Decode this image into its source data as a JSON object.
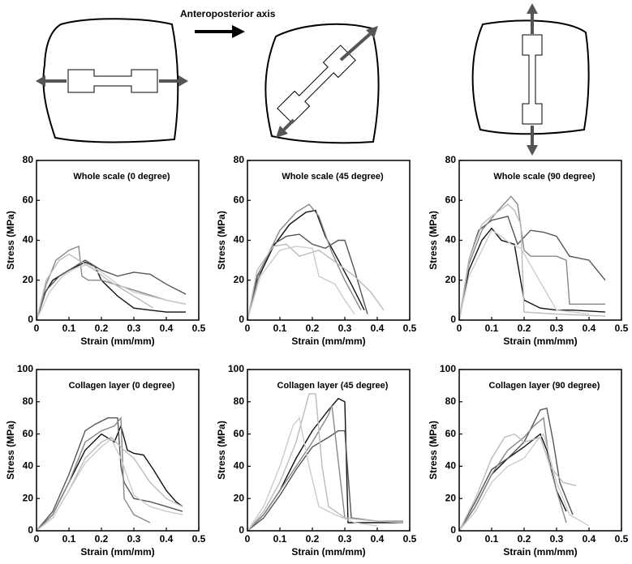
{
  "diagram": {
    "axis_label": "Anteroposterior axis"
  },
  "chart_data": [
    {
      "type": "line",
      "title": "Whole scale (0 degree)",
      "xlabel": "Strain (mm/mm)",
      "ylabel": "Stress (MPa)",
      "xlim": [
        0,
        0.5
      ],
      "ylim": [
        0,
        80
      ],
      "xticks": [
        0,
        0.1,
        0.2,
        0.3,
        0.4,
        0.5
      ],
      "yticks": [
        0,
        20,
        40,
        60,
        80
      ],
      "series": [
        {
          "color": "#111111",
          "x": [
            0,
            0.02,
            0.05,
            0.1,
            0.15,
            0.18,
            0.2,
            0.25,
            0.3,
            0.35,
            0.4,
            0.46
          ],
          "values": [
            0,
            12,
            20,
            25,
            29,
            27,
            20,
            12,
            6,
            5,
            4,
            4
          ]
        },
        {
          "color": "#555555",
          "x": [
            0,
            0.03,
            0.07,
            0.12,
            0.15,
            0.2,
            0.25,
            0.3,
            0.35,
            0.4,
            0.46
          ],
          "values": [
            0,
            15,
            22,
            27,
            30,
            25,
            22,
            24,
            23,
            18,
            13
          ]
        },
        {
          "color": "#888888",
          "x": [
            0,
            0.03,
            0.06,
            0.1,
            0.13,
            0.14,
            0.16,
            0.2,
            0.3,
            0.4,
            0.46
          ],
          "values": [
            0,
            18,
            30,
            35,
            37,
            22,
            20,
            20,
            15,
            10,
            8
          ]
        },
        {
          "color": "#bbbbbb",
          "x": [
            0,
            0.03,
            0.07,
            0.1,
            0.15,
            0.18,
            0.22,
            0.3,
            0.36
          ],
          "values": [
            0,
            20,
            30,
            33,
            28,
            25,
            20,
            12,
            6
          ]
        },
        {
          "color": "#cccccc",
          "x": [
            0,
            0.04,
            0.08,
            0.12,
            0.16,
            0.2,
            0.25,
            0.3,
            0.4,
            0.46
          ],
          "values": [
            0,
            14,
            22,
            26,
            28,
            24,
            18,
            14,
            10,
            8
          ]
        }
      ]
    },
    {
      "type": "line",
      "title": "Whole scale (45 degree)",
      "xlabel": "Strain (mm/mm)",
      "ylabel": "Stress (MPa)",
      "xlim": [
        0,
        0.5
      ],
      "ylim": [
        0,
        80
      ],
      "xticks": [
        0,
        0.1,
        0.2,
        0.3,
        0.4,
        0.5
      ],
      "yticks": [
        0,
        20,
        40,
        60,
        80
      ],
      "series": [
        {
          "color": "#111111",
          "x": [
            0,
            0.03,
            0.08,
            0.13,
            0.18,
            0.21,
            0.24,
            0.28,
            0.32,
            0.36
          ],
          "values": [
            0,
            20,
            37,
            48,
            54,
            55,
            42,
            30,
            18,
            5
          ]
        },
        {
          "color": "#555555",
          "x": [
            0,
            0.03,
            0.08,
            0.12,
            0.16,
            0.2,
            0.24,
            0.28,
            0.3,
            0.33,
            0.37
          ],
          "values": [
            0,
            22,
            38,
            42,
            43,
            38,
            36,
            40,
            40,
            25,
            3
          ]
        },
        {
          "color": "#888888",
          "x": [
            0,
            0.04,
            0.1,
            0.15,
            0.19,
            0.22,
            0.26,
            0.3,
            0.35
          ],
          "values": [
            0,
            25,
            45,
            54,
            58,
            52,
            34,
            20,
            5
          ]
        },
        {
          "color": "#bbbbbb",
          "x": [
            0,
            0.03,
            0.08,
            0.12,
            0.16,
            0.22,
            0.28,
            0.33,
            0.38,
            0.42
          ],
          "values": [
            0,
            25,
            37,
            38,
            32,
            35,
            28,
            22,
            14,
            5
          ]
        },
        {
          "color": "#cccccc",
          "x": [
            0,
            0.04,
            0.1,
            0.15,
            0.2,
            0.22,
            0.27,
            0.3,
            0.33
          ],
          "values": [
            0,
            22,
            35,
            37,
            36,
            22,
            18,
            10,
            3
          ]
        }
      ]
    },
    {
      "type": "line",
      "title": "Whole scale (90 degree)",
      "xlabel": "Strain (mm/mm)",
      "ylabel": "Stress (MPa)",
      "xlim": [
        0,
        0.5
      ],
      "ylim": [
        0,
        80
      ],
      "xticks": [
        0,
        0.1,
        0.2,
        0.3,
        0.4,
        0.5
      ],
      "yticks": [
        0,
        20,
        40,
        60,
        80
      ],
      "series": [
        {
          "color": "#111111",
          "x": [
            0,
            0.03,
            0.07,
            0.1,
            0.13,
            0.17,
            0.2,
            0.25,
            0.3,
            0.35,
            0.45
          ],
          "values": [
            0,
            25,
            40,
            46,
            40,
            38,
            10,
            6,
            5,
            5,
            4
          ]
        },
        {
          "color": "#555555",
          "x": [
            0,
            0.03,
            0.06,
            0.1,
            0.15,
            0.18,
            0.22,
            0.26,
            0.3,
            0.34,
            0.4,
            0.45
          ],
          "values": [
            0,
            30,
            45,
            50,
            52,
            38,
            45,
            44,
            42,
            32,
            30,
            20
          ]
        },
        {
          "color": "#888888",
          "x": [
            0,
            0.03,
            0.07,
            0.12,
            0.16,
            0.18,
            0.2,
            0.22,
            0.3,
            0.33,
            0.34,
            0.45
          ],
          "values": [
            0,
            28,
            45,
            55,
            62,
            58,
            35,
            32,
            32,
            30,
            8,
            8
          ]
        },
        {
          "color": "#bbbbbb",
          "x": [
            0,
            0.03,
            0.07,
            0.1,
            0.15,
            0.17,
            0.19,
            0.2,
            0.3,
            0.45
          ],
          "values": [
            0,
            30,
            48,
            52,
            58,
            55,
            48,
            4,
            3,
            2
          ]
        },
        {
          "color": "#cccccc",
          "x": [
            0,
            0.03,
            0.07,
            0.1,
            0.13,
            0.16,
            0.19,
            0.3,
            0.4
          ],
          "values": [
            0,
            22,
            35,
            45,
            42,
            38,
            36,
            5,
            3
          ]
        }
      ]
    },
    {
      "type": "line",
      "title": "Collagen layer  (0 degree)",
      "xlabel": "Strain (mm/mm)",
      "ylabel": "Stress (MPa)",
      "xlim": [
        0,
        0.5
      ],
      "ylim": [
        0,
        100
      ],
      "xticks": [
        0,
        0.1,
        0.2,
        0.3,
        0.4,
        0.5
      ],
      "yticks": [
        0,
        20,
        40,
        60,
        80,
        100
      ],
      "series": [
        {
          "color": "#111111",
          "x": [
            0,
            0.05,
            0.1,
            0.15,
            0.2,
            0.24,
            0.26,
            0.28,
            0.3,
            0.33,
            0.36,
            0.4,
            0.43,
            0.45
          ],
          "values": [
            0,
            10,
            30,
            50,
            60,
            55,
            65,
            50,
            48,
            47,
            38,
            25,
            18,
            15
          ]
        },
        {
          "color": "#555555",
          "x": [
            0,
            0.05,
            0.1,
            0.15,
            0.18,
            0.22,
            0.25,
            0.26,
            0.27,
            0.3,
            0.35,
            0.4,
            0.45
          ],
          "values": [
            0,
            12,
            35,
            62,
            66,
            70,
            70,
            40,
            30,
            20,
            18,
            15,
            12
          ]
        },
        {
          "color": "#888888",
          "x": [
            0,
            0.05,
            0.1,
            0.15,
            0.2,
            0.24,
            0.26,
            0.27,
            0.3,
            0.35
          ],
          "values": [
            0,
            10,
            30,
            55,
            62,
            65,
            70,
            20,
            10,
            5
          ]
        },
        {
          "color": "#bbbbbb",
          "x": [
            0,
            0.05,
            0.1,
            0.15,
            0.2,
            0.23,
            0.27,
            0.3,
            0.35,
            0.4,
            0.45
          ],
          "values": [
            0,
            8,
            25,
            45,
            55,
            58,
            50,
            45,
            30,
            20,
            15
          ]
        },
        {
          "color": "#cccccc",
          "x": [
            0,
            0.05,
            0.1,
            0.15,
            0.2,
            0.23,
            0.26,
            0.3,
            0.35,
            0.4,
            0.45
          ],
          "values": [
            0,
            8,
            25,
            42,
            52,
            57,
            45,
            22,
            15,
            12,
            10
          ]
        }
      ]
    },
    {
      "type": "line",
      "title": "Collagen layer (45 degree)",
      "xlabel": "Strain (mm/mm)",
      "ylabel": "Stress (MPa)",
      "xlim": [
        0,
        0.5
      ],
      "ylim": [
        0,
        100
      ],
      "xticks": [
        0,
        0.1,
        0.2,
        0.3,
        0.4,
        0.5
      ],
      "yticks": [
        0,
        20,
        40,
        60,
        80,
        100
      ],
      "series": [
        {
          "color": "#111111",
          "x": [
            0,
            0.05,
            0.1,
            0.15,
            0.2,
            0.25,
            0.28,
            0.3,
            0.31,
            0.35,
            0.4,
            0.48
          ],
          "values": [
            0,
            10,
            25,
            45,
            62,
            75,
            82,
            80,
            5,
            5,
            5,
            5
          ]
        },
        {
          "color": "#555555",
          "x": [
            0,
            0.05,
            0.1,
            0.15,
            0.2,
            0.25,
            0.28,
            0.3,
            0.32,
            0.4,
            0.48
          ],
          "values": [
            0,
            8,
            22,
            38,
            52,
            58,
            62,
            62,
            8,
            6,
            5
          ]
        },
        {
          "color": "#888888",
          "x": [
            0,
            0.05,
            0.1,
            0.15,
            0.2,
            0.25,
            0.26,
            0.3,
            0.4,
            0.48
          ],
          "values": [
            0,
            10,
            25,
            40,
            55,
            72,
            78,
            8,
            6,
            6
          ]
        },
        {
          "color": "#bbbbbb",
          "x": [
            0,
            0.05,
            0.1,
            0.15,
            0.19,
            0.21,
            0.23,
            0.25,
            0.3,
            0.4,
            0.48
          ],
          "values": [
            0,
            12,
            30,
            55,
            85,
            85,
            40,
            15,
            8,
            6,
            5
          ]
        },
        {
          "color": "#cccccc",
          "x": [
            0,
            0.05,
            0.1,
            0.14,
            0.16,
            0.19,
            0.22,
            0.27,
            0.33,
            0.4
          ],
          "values": [
            0,
            15,
            40,
            65,
            70,
            40,
            15,
            10,
            5,
            3
          ]
        }
      ]
    },
    {
      "type": "line",
      "title": "Collagen layer  (90 degree)",
      "xlabel": "Strain (mm/mm)",
      "ylabel": "Stress (MPa)",
      "xlim": [
        0,
        0.5
      ],
      "ylim": [
        0,
        100
      ],
      "xticks": [
        0,
        0.1,
        0.2,
        0.3,
        0.4,
        0.5
      ],
      "yticks": [
        0,
        20,
        40,
        60,
        80,
        100
      ],
      "series": [
        {
          "color": "#111111",
          "x": [
            0,
            0.05,
            0.1,
            0.15,
            0.2,
            0.25,
            0.27,
            0.3,
            0.33
          ],
          "values": [
            0,
            15,
            35,
            45,
            52,
            60,
            50,
            25,
            12
          ]
        },
        {
          "color": "#555555",
          "x": [
            0,
            0.05,
            0.1,
            0.15,
            0.2,
            0.25,
            0.27,
            0.29,
            0.31,
            0.35
          ],
          "values": [
            0,
            18,
            38,
            45,
            55,
            75,
            76,
            55,
            30,
            10
          ]
        },
        {
          "color": "#888888",
          "x": [
            0,
            0.05,
            0.1,
            0.15,
            0.2,
            0.23,
            0.26,
            0.28,
            0.3,
            0.33
          ],
          "values": [
            0,
            15,
            35,
            50,
            58,
            65,
            70,
            40,
            25,
            5
          ]
        },
        {
          "color": "#bbbbbb",
          "x": [
            0,
            0.05,
            0.1,
            0.14,
            0.17,
            0.2,
            0.25,
            0.28,
            0.32,
            0.36
          ],
          "values": [
            0,
            20,
            45,
            58,
            60,
            55,
            58,
            40,
            30,
            28
          ]
        },
        {
          "color": "#cccccc",
          "x": [
            0,
            0.05,
            0.1,
            0.15,
            0.2,
            0.24,
            0.26,
            0.3,
            0.34,
            0.4
          ],
          "values": [
            0,
            12,
            30,
            40,
            45,
            56,
            60,
            30,
            10,
            3
          ]
        }
      ]
    }
  ]
}
